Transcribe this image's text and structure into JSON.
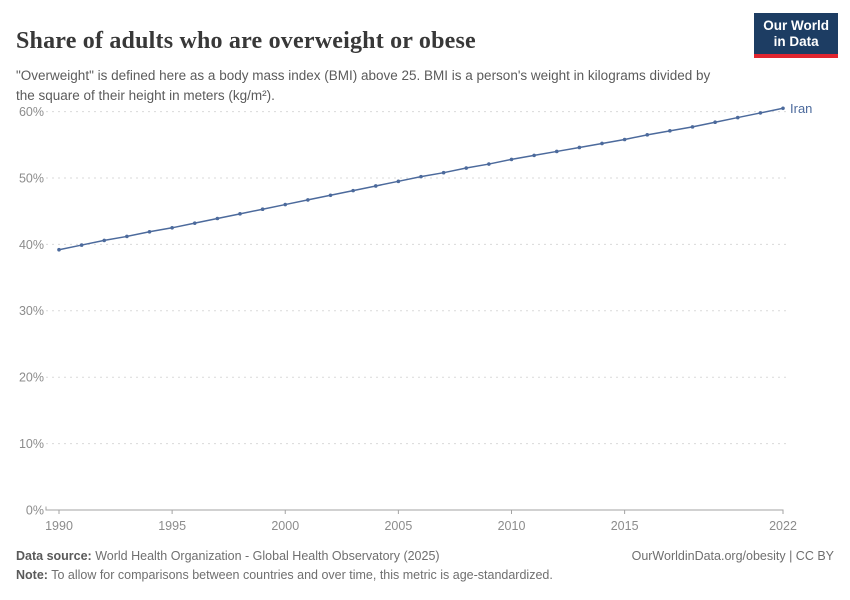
{
  "header": {
    "title": "Share of adults who are overweight or obese",
    "subtitle": "\"Overweight\" is defined here as a body mass index (BMI) above 25. BMI is a person's weight in kilograms divided by the square of their height in meters (kg/m²).",
    "logo": {
      "line1": "Our World",
      "line2": "in Data",
      "bg_color": "#1d3d63",
      "accent_color": "#e0252f"
    }
  },
  "chart_data": {
    "type": "line",
    "title": "Share of adults who are overweight or obese",
    "xlabel": "",
    "ylabel": "",
    "xlim": [
      1990,
      2022
    ],
    "ylim": [
      0,
      62
    ],
    "grid": "horizontal dashed",
    "legend_position": "end-of-line label",
    "x_ticks": [
      1990,
      1995,
      2000,
      2005,
      2010,
      2015,
      2022
    ],
    "y_ticks": [
      0,
      10,
      20,
      30,
      40,
      50,
      60
    ],
    "y_tick_suffix": "%",
    "axis_color": "#a3a3a3",
    "grid_color": "#dadada",
    "tick_label_color": "#8c8c8c",
    "series": [
      {
        "name": "Iran",
        "color": "#4c6a9c",
        "x": [
          1990,
          1991,
          1992,
          1993,
          1994,
          1995,
          1996,
          1997,
          1998,
          1999,
          2000,
          2001,
          2002,
          2003,
          2004,
          2005,
          2006,
          2007,
          2008,
          2009,
          2010,
          2011,
          2012,
          2013,
          2014,
          2015,
          2016,
          2017,
          2018,
          2019,
          2020,
          2021,
          2022
        ],
        "values": [
          39.2,
          39.9,
          40.6,
          41.2,
          41.9,
          42.5,
          43.2,
          43.9,
          44.6,
          45.3,
          46.0,
          46.7,
          47.4,
          48.1,
          48.8,
          49.5,
          50.2,
          50.8,
          51.5,
          52.1,
          52.8,
          53.4,
          54.0,
          54.6,
          55.2,
          55.8,
          56.5,
          57.1,
          57.7,
          58.4,
          59.1,
          59.8,
          60.5
        ]
      }
    ]
  },
  "footer": {
    "data_source_label": "Data source:",
    "data_source_text": " World Health Organization - Global Health Observatory (2025)",
    "note_label": "Note:",
    "note_text": " To allow for comparisons between countries and over time, this metric is age-standardized.",
    "cite_text": "OurWorldinData.org/obesity | CC BY"
  }
}
